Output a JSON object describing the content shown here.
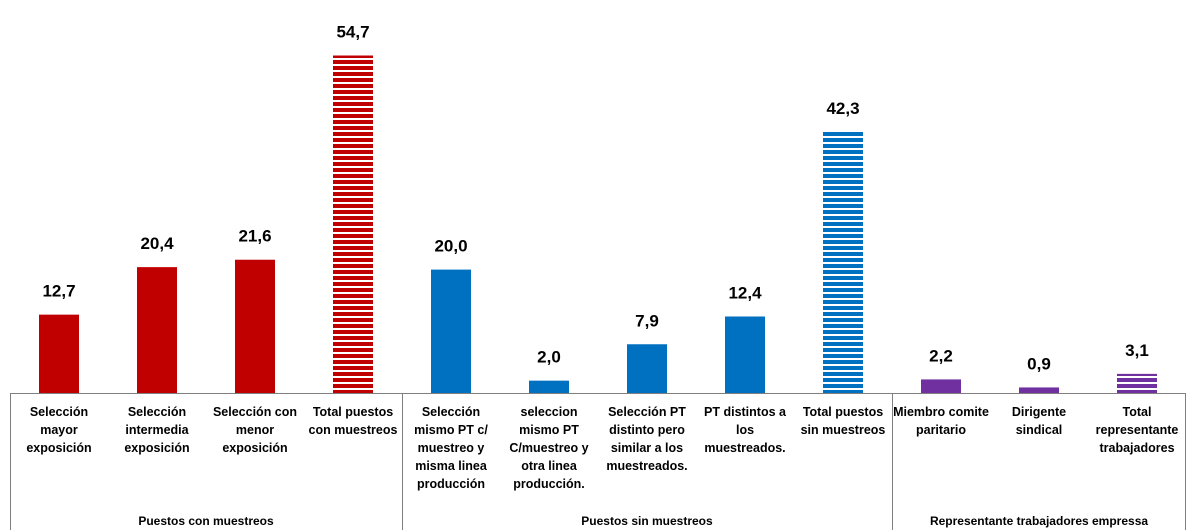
{
  "chart_data": {
    "type": "bar",
    "title": "",
    "xlabel": "",
    "ylabel": "",
    "ylim": [
      0,
      60
    ],
    "grid": false,
    "legend": "none",
    "colors": {
      "red": "#C00000",
      "blue": "#0070C0",
      "purple": "#7030A0"
    },
    "categories": [
      "Selección mayor exposición",
      "Selección intermedia exposición",
      "Selección con menor exposición",
      "Total puestos con muestreos",
      "Selección mismo PT c/ muestreo y misma linea producción",
      "seleccion mismo PT C/muestreo y otra linea producción.",
      "Selección PT distinto pero similar a los muestreados.",
      "PT distintos a los muestreados.",
      "Total puestos sin muestreos",
      "Miembro comite paritario",
      "Dirigente sindical",
      "Total representante trabajadores"
    ],
    "values": [
      12.7,
      20.4,
      21.6,
      54.7,
      20.0,
      2.0,
      7.9,
      12.4,
      42.3,
      2.2,
      0.9,
      3.1
    ],
    "value_labels": [
      "12,7",
      "20,4",
      "21,6",
      "54,7",
      "20,0",
      "2,0",
      "7,9",
      "12,4",
      "42,3",
      "2,2",
      "0,9",
      "3,1"
    ],
    "bar_colors": [
      "red",
      "red",
      "red",
      "red",
      "blue",
      "blue",
      "blue",
      "blue",
      "blue",
      "purple",
      "purple",
      "purple"
    ],
    "bar_patterns": [
      "solid",
      "solid",
      "solid",
      "striped",
      "solid",
      "solid",
      "solid",
      "solid",
      "striped",
      "solid",
      "solid",
      "striped"
    ],
    "groups": [
      {
        "label": "Puestos con muestreos",
        "count": 4
      },
      {
        "label": "Puestos sin muestreos",
        "count": 5
      },
      {
        "label": "Representante trabajadores empressa",
        "count": 3
      }
    ]
  }
}
